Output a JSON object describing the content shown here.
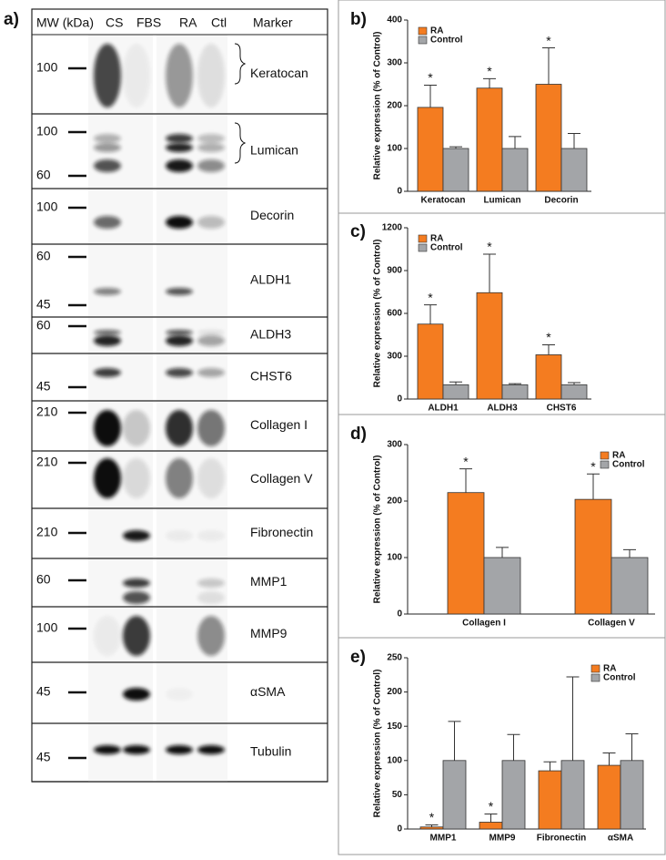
{
  "panel_a": {
    "label": "a)",
    "header": [
      "MW (kDa)",
      "CS",
      "FBS",
      "RA",
      "Ctl",
      "Marker"
    ],
    "rows": [
      {
        "mw": [
          "100"
        ],
        "marker": "Keratocan"
      },
      {
        "mw": [
          "100",
          "60"
        ],
        "marker": "Lumican"
      },
      {
        "mw": [
          "100"
        ],
        "marker": "Decorin"
      },
      {
        "mw": [
          "60",
          "45"
        ],
        "marker": "ALDH1"
      },
      {
        "mw": [
          "60"
        ],
        "marker": "ALDH3"
      },
      {
        "mw": [
          "45"
        ],
        "marker": "CHST6"
      },
      {
        "mw": [
          "210"
        ],
        "marker": "Collagen I"
      },
      {
        "mw": [
          "210"
        ],
        "marker": "Collagen V"
      },
      {
        "mw": [
          "210"
        ],
        "marker": "Fibronectin"
      },
      {
        "mw": [
          "60"
        ],
        "marker": "MMP1"
      },
      {
        "mw": [
          "100"
        ],
        "marker": "MMP9"
      },
      {
        "mw": [
          "45"
        ],
        "marker": "αSMA"
      },
      {
        "mw": [
          "45"
        ],
        "marker": "Tubulin"
      }
    ]
  },
  "chart_data": [
    {
      "type": "bar",
      "panel_label": "b)",
      "y_label": "Relative expression (% of Control)",
      "categories": [
        "Keratocan",
        "Lumican",
        "Decorin"
      ],
      "series": [
        {
          "name": "RA",
          "color": "#f47c20",
          "values": [
            196,
            241,
            250
          ],
          "errors": [
            52,
            22,
            85
          ],
          "significance": [
            "*",
            "*",
            "*"
          ]
        },
        {
          "name": "Control",
          "color": "#a3a5a8",
          "values": [
            100,
            100,
            100
          ],
          "errors": [
            4,
            28,
            35
          ]
        }
      ],
      "ylim": [
        0,
        400
      ],
      "yticks": [
        0,
        100,
        200,
        300,
        400
      ],
      "legend": "top-left"
    },
    {
      "type": "bar",
      "panel_label": "c)",
      "y_label": "Relative expression (% of Control)",
      "categories": [
        "ALDH1",
        "ALDH3",
        "CHST6"
      ],
      "series": [
        {
          "name": "RA",
          "color": "#f47c20",
          "values": [
            525,
            745,
            310
          ],
          "errors": [
            135,
            270,
            70
          ],
          "significance": [
            "*",
            "*",
            "*"
          ]
        },
        {
          "name": "Control",
          "color": "#a3a5a8",
          "values": [
            100,
            100,
            100
          ],
          "errors": [
            20,
            8,
            15
          ]
        }
      ],
      "ylim": [
        0,
        1200
      ],
      "yticks": [
        0,
        300,
        600,
        900,
        1200
      ],
      "legend": "top-left"
    },
    {
      "type": "bar",
      "panel_label": "d)",
      "y_label": "Relative expression (% of Control)",
      "categories": [
        "Collagen I",
        "Collagen V"
      ],
      "series": [
        {
          "name": "RA",
          "color": "#f47c20",
          "values": [
            215,
            203
          ],
          "errors": [
            42,
            45
          ],
          "significance": [
            "*",
            "*"
          ]
        },
        {
          "name": "Control",
          "color": "#a3a5a8",
          "values": [
            100,
            100
          ],
          "errors": [
            18,
            14
          ]
        }
      ],
      "ylim": [
        0,
        300
      ],
      "yticks": [
        0,
        100,
        200,
        300
      ],
      "legend": "top-right"
    },
    {
      "type": "bar",
      "panel_label": "e)",
      "y_label": "Relative expression (% of Control)",
      "categories": [
        "MMP1",
        "MMP9",
        "Fibronectin",
        "αSMA"
      ],
      "series": [
        {
          "name": "RA",
          "color": "#f47c20",
          "values": [
            3,
            10,
            85,
            93
          ],
          "errors": [
            3,
            12,
            13,
            18
          ],
          "significance": [
            "*",
            "*",
            null,
            null
          ]
        },
        {
          "name": "Control",
          "color": "#a3a5a8",
          "values": [
            100,
            100,
            100,
            100
          ],
          "errors": [
            57,
            38,
            122,
            39
          ]
        }
      ],
      "ylim": [
        0,
        250
      ],
      "yticks": [
        0,
        50,
        100,
        150,
        200,
        250
      ],
      "legend": "top-right"
    }
  ]
}
